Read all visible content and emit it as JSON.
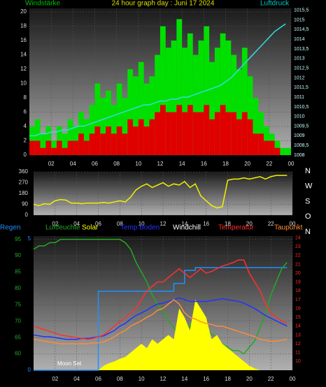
{
  "chart_data": [
    {
      "type": "bar",
      "title": "24 hour graph day : Juni 17 2024",
      "y_label": "Windstärke",
      "y2_label": "Luftdruck",
      "x": [
        0,
        0.5,
        1,
        1.5,
        2,
        2.5,
        3,
        3.5,
        4,
        4.5,
        5,
        5.5,
        6,
        6.5,
        7,
        7.5,
        8,
        8.5,
        9,
        9.5,
        10,
        10.5,
        11,
        11.5,
        12,
        12.5,
        13,
        13.5,
        14,
        14.5,
        15,
        15.5,
        16,
        16.5,
        17,
        17.5,
        18,
        18.5,
        19,
        19.5,
        20,
        20.5,
        21,
        21.5,
        22,
        22.5,
        23,
        23.5
      ],
      "series": [
        {
          "color": "#00e000",
          "values": [
            4,
            5,
            3,
            4,
            2,
            4,
            3,
            5,
            4,
            6,
            5,
            7,
            10,
            8,
            9,
            7,
            10,
            8,
            12,
            11,
            13,
            10,
            11,
            14,
            18,
            15,
            16,
            19,
            15,
            17,
            14,
            16,
            18,
            13,
            15,
            17,
            16,
            14,
            12,
            15,
            11,
            8,
            6,
            4,
            3,
            2,
            1,
            1
          ]
        },
        {
          "color": "#e00000",
          "values": [
            2,
            2,
            1,
            2,
            1,
            2,
            1,
            2,
            2,
            3,
            2,
            3,
            4,
            3,
            4,
            3,
            4,
            3,
            5,
            4,
            5,
            4,
            5,
            6,
            7,
            6,
            6,
            7,
            6,
            7,
            6,
            6,
            7,
            5,
            6,
            7,
            6,
            6,
            5,
            6,
            5,
            3,
            3,
            2,
            2,
            1,
            0,
            0
          ]
        },
        {
          "color": "#33dddd",
          "axis": "y2",
          "values": [
            1009,
            1009,
            1009.1,
            1009.1,
            1009.2,
            1009.2,
            1009.3,
            1009.3,
            1009.4,
            1009.5,
            1009.5,
            1009.6,
            1009.7,
            1009.8,
            1009.9,
            1010,
            1010.1,
            1010.2,
            1010.3,
            1010.4,
            1010.5,
            1010.6,
            1010.6,
            1010.7,
            1010.8,
            1010.8,
            1010.9,
            1010.9,
            1011,
            1011,
            1011.1,
            1011.2,
            1011.3,
            1011.4,
            1011.5,
            1011.6,
            1011.8,
            1012,
            1012.3,
            1012.6,
            1012.9,
            1013.2,
            1013.5,
            1013.8,
            1014.1,
            1014.4,
            1014.6,
            1014.8
          ]
        }
      ],
      "xlim": [
        0,
        24
      ],
      "xticks": [
        {
          "value": 2,
          "label": "02"
        },
        {
          "value": 4,
          "label": "04"
        },
        {
          "value": 6,
          "label": "06"
        },
        {
          "value": 8,
          "label": "08"
        },
        10,
        12,
        14,
        16,
        18,
        20,
        22,
        {
          "value": 24,
          "label": "00"
        }
      ],
      "ylim": [
        0,
        20.5
      ],
      "yticks": [
        0,
        2,
        4,
        6,
        8,
        10,
        12,
        14,
        16,
        18,
        20
      ],
      "y2lim": [
        1008,
        1015.6
      ],
      "y2ticks": [
        1008,
        {
          "value": 1008.5,
          "label": "1008,5"
        },
        1009,
        {
          "value": 1009.5,
          "label": "1009,5"
        },
        1010,
        {
          "value": 1010.5,
          "label": "1010,5"
        },
        1011,
        {
          "value": 1011.5,
          "label": "1011,5"
        },
        1012,
        {
          "value": 1012.5,
          "label": "1012,5"
        },
        1013,
        {
          "value": 1013.5,
          "label": "1013,5"
        },
        1014,
        {
          "value": 1014.5,
          "label": "1014,5"
        },
        1015,
        {
          "value": 1015.5,
          "label": "1015,5"
        }
      ],
      "grid": true
    },
    {
      "type": "line",
      "x": [
        0,
        0.5,
        1,
        1.5,
        2,
        2.5,
        3,
        3.5,
        4,
        4.5,
        5,
        5.5,
        6,
        6.5,
        7,
        7.5,
        8,
        8.5,
        9,
        9.5,
        10,
        10.5,
        11,
        11.5,
        12,
        12.5,
        13,
        13.5,
        14,
        14.5,
        15,
        15.5,
        16,
        16.5,
        17,
        17.5,
        18,
        18.5,
        19,
        19.5,
        20,
        20.5,
        21,
        21.5,
        22,
        22.5,
        23,
        23.5
      ],
      "series": [
        {
          "color": "#f0f000",
          "values": [
            90,
            80,
            95,
            90,
            120,
            130,
            125,
            100,
            100,
            95,
            100,
            100,
            100,
            105,
            100,
            110,
            120,
            110,
            150,
            210,
            240,
            260,
            230,
            250,
            270,
            240,
            260,
            250,
            280,
            230,
            260,
            160,
            120,
            80,
            60,
            70,
            290,
            300,
            300,
            310,
            300,
            310,
            320,
            300,
            320,
            330,
            330,
            330
          ]
        }
      ],
      "xlim": [
        0,
        24
      ],
      "xticks": [
        {
          "value": 2,
          "label": "02"
        },
        {
          "value": 4,
          "label": "04"
        },
        {
          "value": 6,
          "label": "06"
        },
        {
          "value": 8,
          "label": "08"
        },
        10,
        12,
        14,
        16,
        18,
        20,
        22,
        {
          "value": 24,
          "label": "00"
        }
      ],
      "ylim": [
        0,
        360
      ],
      "yticks": [
        0,
        90,
        180,
        270,
        360
      ],
      "y2lim": [
        0,
        360
      ],
      "y2ticks": [
        {
          "value": 360,
          "label": "N"
        },
        {
          "value": 270,
          "label": "W"
        },
        {
          "value": 180,
          "label": "S"
        },
        {
          "value": 90,
          "label": "O"
        },
        {
          "value": 0,
          "label": "N"
        }
      ],
      "grid": true
    },
    {
      "type": "line",
      "x": [
        0,
        0.5,
        1,
        1.5,
        2,
        2.5,
        3,
        3.5,
        4,
        4.5,
        5,
        5.5,
        6,
        6.5,
        7,
        7.5,
        8,
        8.5,
        9,
        9.5,
        10,
        10.5,
        11,
        11.5,
        12,
        12.5,
        13,
        13.5,
        14,
        14.5,
        15,
        15.5,
        16,
        16.5,
        17,
        17.5,
        18,
        18.5,
        19,
        19.5,
        20,
        20.5,
        21,
        21.5,
        22,
        22.5,
        23,
        23.5
      ],
      "series": [
        {
          "name": "Regen",
          "color": "#1e90ff",
          "axis": "y3",
          "step": true,
          "values": [
            0,
            0,
            0,
            0,
            0,
            0,
            0,
            0,
            0,
            0,
            0,
            0,
            3,
            3,
            3,
            3,
            3,
            3,
            3,
            3,
            3,
            3,
            3,
            3,
            3,
            3,
            3.3,
            3.3,
            3.8,
            3.8,
            3.9,
            3.9,
            3.9,
            3.9,
            3.9,
            3.9,
            3.9,
            3.9,
            3.9,
            3.9,
            3.9,
            3.9,
            3.9,
            3.9,
            3.9,
            3.9,
            3.9,
            3.9
          ]
        },
        {
          "name": "Luftfeuchte",
          "color": "#22aa22",
          "values": [
            92,
            93,
            93,
            94,
            94,
            95,
            95,
            95,
            95,
            95,
            95,
            95,
            95,
            95,
            95,
            95,
            95,
            94,
            92,
            88,
            85,
            82,
            78,
            75,
            73,
            70,
            68,
            66,
            70,
            68,
            72,
            70,
            68,
            66,
            65,
            63,
            62,
            61,
            61,
            60,
            62,
            64,
            68,
            72,
            78,
            82,
            86,
            88
          ]
        },
        {
          "name": "Solar",
          "color": "#ffff00",
          "axis": "y2",
          "area": true,
          "values": [
            9,
            9,
            9,
            9,
            9,
            9,
            9,
            9,
            9,
            9,
            9,
            9,
            9,
            9.5,
            9.8,
            10,
            10.3,
            10.5,
            11,
            11.5,
            12,
            11.5,
            12.5,
            12,
            12.5,
            13,
            12.5,
            16,
            15,
            13.5,
            17,
            16,
            15,
            12.5,
            13,
            12,
            11.5,
            11,
            10.5,
            10,
            9.5,
            9.2,
            9,
            9,
            9,
            9,
            9,
            9
          ]
        },
        {
          "name": "Temp Boden",
          "color": "#2233ff",
          "axis": "y2",
          "values": [
            13,
            12.9,
            12.8,
            12.8,
            12.7,
            12.6,
            12.5,
            12.5,
            12.5,
            12.6,
            12.6,
            12.7,
            12.8,
            12.9,
            13.2,
            13.5,
            14,
            14.3,
            14.8,
            15.2,
            15.5,
            15.8,
            16.2,
            16.5,
            16.6,
            16.8,
            17,
            17.2,
            17,
            16.8,
            16.8,
            16.8,
            16.8,
            16.9,
            17,
            17.1,
            17,
            16.9,
            16.8,
            16.6,
            16.3,
            16,
            15.6,
            15.2,
            14.9,
            14.6,
            14.3,
            14
          ]
        },
        {
          "name": "Windchill",
          "color": "#ffffff"
        },
        {
          "name": "Temperatur",
          "color": "#ff3030",
          "axis": "y2",
          "values": [
            14,
            13.8,
            13.6,
            13.4,
            13.2,
            13,
            12.9,
            12.8,
            12.7,
            12.6,
            12.5,
            12.6,
            12.8,
            13,
            13.5,
            14,
            14.5,
            15,
            15.5,
            16,
            17,
            18,
            18.5,
            19,
            19,
            19.5,
            20,
            20.5,
            20,
            19.5,
            20,
            20.5,
            20,
            20.2,
            20.5,
            20.8,
            21,
            21.2,
            21.5,
            21.5,
            20,
            19,
            18,
            16.5,
            15.5,
            15,
            14.6,
            14.3
          ]
        },
        {
          "name": "Taupunkt",
          "color": "#ff8c3a",
          "axis": "y2",
          "values": [
            12.5,
            12.4,
            12.3,
            12.2,
            12.1,
            12,
            12,
            12,
            12,
            12,
            12,
            12.1,
            12.1,
            12.2,
            12.5,
            12.8,
            13.2,
            13.5,
            14,
            14.3,
            14.6,
            15,
            15.3,
            15.8,
            16,
            16.5,
            17,
            16.5,
            15.5,
            15,
            14.8,
            14.5,
            14.3,
            14.2,
            14,
            14,
            13.8,
            13.6,
            13.4,
            13.2,
            13,
            12.8,
            12.5,
            12.4,
            12.3,
            12.3,
            12.4,
            12.5
          ]
        }
      ],
      "annotation": "Moon Set",
      "xlim": [
        0,
        24
      ],
      "xticks": [
        {
          "value": 2,
          "label": "02"
        },
        {
          "value": 4,
          "label": "04"
        },
        {
          "value": 6,
          "label": "06"
        },
        {
          "value": 8,
          "label": "08"
        },
        10,
        12,
        14,
        16,
        18,
        20,
        22,
        {
          "value": 24,
          "label": "00"
        }
      ],
      "ylim": [
        55,
        96
      ],
      "yticks": [
        60,
        65,
        70,
        75,
        80,
        85,
        90,
        95
      ],
      "y2lim": [
        9,
        24.2
      ],
      "y2ticks": [
        10,
        11,
        12,
        13,
        14,
        15,
        16,
        17,
        18,
        19,
        20,
        21,
        22,
        23,
        24
      ],
      "y3lim": [
        0,
        5.1
      ],
      "y3ticks": [
        0,
        5
      ],
      "grid": true
    }
  ]
}
